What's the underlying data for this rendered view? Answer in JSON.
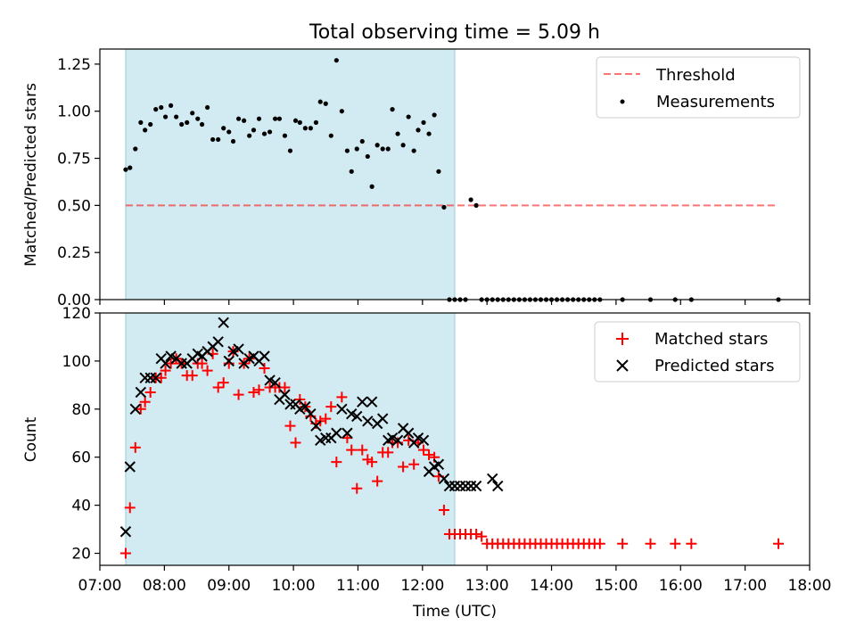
{
  "title": "Total observing time = 5.09 h",
  "colors": {
    "span": "#add8e6",
    "threshold": "#ff0000",
    "measurement": "#000000",
    "matched": "#ff0000",
    "predicted": "#000000"
  },
  "chart_data": [
    {
      "type": "scatter",
      "panel": "top",
      "title": "Total observing time = 5.09 h",
      "xlabel": "",
      "ylabel": "Matched/Predicted stars",
      "xlim": [
        "07:00",
        "18:00"
      ],
      "ylim": [
        0,
        1.33
      ],
      "yticks": [
        "0.00",
        "0.25",
        "0.50",
        "0.75",
        "1.00",
        "1.25"
      ],
      "shaded_span": [
        "07:24",
        "12:30"
      ],
      "legend_position": "top-right",
      "threshold": {
        "name": "Threshold",
        "value": 0.5,
        "x_range": [
          "07:24",
          "17:30"
        ],
        "style": "dashed"
      },
      "series": [
        {
          "name": "Measurements",
          "marker": "dot",
          "x": [
            "07:24",
            "07:28",
            "07:33",
            "07:38",
            "07:42",
            "07:47",
            "07:52",
            "07:57",
            "08:01",
            "08:06",
            "08:11",
            "08:16",
            "08:21",
            "08:26",
            "08:31",
            "08:35",
            "08:40",
            "08:45",
            "08:50",
            "08:55",
            "09:00",
            "09:04",
            "09:09",
            "09:14",
            "09:19",
            "09:23",
            "09:28",
            "09:33",
            "09:38",
            "09:43",
            "09:47",
            "09:52",
            "09:57",
            "10:02",
            "10:06",
            "10:11",
            "10:16",
            "10:21",
            "10:25",
            "10:30",
            "10:35",
            "10:40",
            "10:45",
            "10:50",
            "10:54",
            "10:59",
            "11:04",
            "11:09",
            "11:13",
            "11:18",
            "11:23",
            "11:28",
            "11:32",
            "11:37",
            "11:42",
            "11:47",
            "11:52",
            "11:56",
            "12:01",
            "12:06",
            "12:11",
            "12:15",
            "12:20",
            "12:25",
            "12:30",
            "12:35",
            "12:40",
            "12:45",
            "12:50",
            "12:55",
            "13:00",
            "13:05",
            "13:10",
            "13:15",
            "13:20",
            "13:25",
            "13:30",
            "13:35",
            "13:40",
            "13:45",
            "13:50",
            "13:55",
            "14:00",
            "14:05",
            "14:10",
            "14:15",
            "14:20",
            "14:25",
            "14:30",
            "14:35",
            "14:40",
            "14:45",
            "15:06",
            "15:32",
            "15:55",
            "16:10",
            "17:31"
          ],
          "y": [
            0.69,
            0.7,
            0.8,
            0.94,
            0.9,
            0.93,
            1.01,
            1.02,
            0.97,
            1.03,
            0.97,
            0.93,
            0.94,
            0.99,
            0.96,
            0.93,
            1.02,
            0.85,
            0.85,
            0.91,
            0.89,
            0.84,
            0.96,
            0.95,
            0.87,
            0.9,
            0.96,
            0.88,
            0.89,
            0.96,
            0.96,
            0.87,
            0.79,
            0.95,
            0.94,
            0.91,
            0.91,
            0.94,
            1.05,
            1.04,
            0.87,
            1.27,
            1.0,
            0.79,
            0.68,
            0.8,
            0.84,
            0.76,
            0.6,
            0.82,
            0.8,
            0.8,
            1.01,
            0.88,
            0.82,
            0.97,
            0.79,
            0.9,
            0.94,
            0.88,
            0.98,
            0.68,
            0.49,
            0,
            0,
            0,
            0,
            0.53,
            0.5,
            0,
            0,
            0,
            0,
            0,
            0,
            0,
            0,
            0,
            0,
            0,
            0,
            0,
            0,
            0,
            0,
            0,
            0,
            0,
            0,
            0,
            0,
            0,
            0,
            0,
            0,
            0,
            0
          ]
        }
      ]
    },
    {
      "type": "scatter",
      "panel": "bottom",
      "xlabel": "Time (UTC)",
      "ylabel": "Count",
      "xlim": [
        "07:00",
        "18:00"
      ],
      "ylim": [
        15,
        120
      ],
      "yticks": [
        "20",
        "40",
        "60",
        "80",
        "100",
        "120"
      ],
      "xticks": [
        "07:00",
        "08:00",
        "09:00",
        "10:00",
        "11:00",
        "12:00",
        "13:00",
        "14:00",
        "15:00",
        "16:00",
        "17:00",
        "18:00"
      ],
      "shaded_span": [
        "07:24",
        "12:30"
      ],
      "legend_position": "top-right",
      "series": [
        {
          "name": "Matched stars",
          "marker": "plus",
          "x": [
            "07:24",
            "07:28",
            "07:33",
            "07:38",
            "07:42",
            "07:47",
            "07:52",
            "07:57",
            "08:01",
            "08:06",
            "08:11",
            "08:16",
            "08:21",
            "08:26",
            "08:31",
            "08:35",
            "08:40",
            "08:45",
            "08:50",
            "08:55",
            "09:00",
            "09:04",
            "09:09",
            "09:14",
            "09:19",
            "09:23",
            "09:28",
            "09:33",
            "09:38",
            "09:43",
            "09:47",
            "09:52",
            "09:57",
            "10:02",
            "10:06",
            "10:11",
            "10:16",
            "10:21",
            "10:25",
            "10:30",
            "10:35",
            "10:40",
            "10:45",
            "10:50",
            "10:54",
            "10:59",
            "11:04",
            "11:09",
            "11:13",
            "11:18",
            "11:23",
            "11:28",
            "11:32",
            "11:37",
            "11:42",
            "11:47",
            "11:52",
            "11:56",
            "12:01",
            "12:06",
            "12:11",
            "12:15",
            "12:20",
            "12:25",
            "12:30",
            "12:35",
            "12:40",
            "12:45",
            "12:50",
            "12:55",
            "13:00",
            "13:05",
            "13:10",
            "13:15",
            "13:20",
            "13:25",
            "13:30",
            "13:35",
            "13:40",
            "13:45",
            "13:50",
            "13:55",
            "14:00",
            "14:05",
            "14:10",
            "14:15",
            "14:20",
            "14:25",
            "14:30",
            "14:35",
            "14:40",
            "14:45",
            "15:06",
            "15:32",
            "15:55",
            "16:10",
            "17:31"
          ],
          "y": [
            20,
            39,
            64,
            80,
            83,
            87,
            93,
            93,
            96,
            99,
            101,
            99,
            94,
            94,
            99,
            99,
            96,
            103,
            89,
            91,
            99,
            104,
            86,
            99,
            101,
            87,
            88,
            97,
            89,
            89,
            89,
            89,
            73,
            66,
            84,
            81,
            77,
            74,
            75,
            76,
            81,
            58,
            85,
            68,
            63,
            47,
            63,
            59,
            58,
            50,
            62,
            62,
            66,
            66,
            56,
            67,
            57,
            66,
            63,
            61,
            60,
            52,
            38,
            28,
            28,
            28,
            28,
            28,
            28,
            27,
            24,
            24,
            24,
            24,
            24,
            24,
            24,
            24,
            24,
            24,
            24,
            24,
            24,
            24,
            24,
            24,
            24,
            24,
            24,
            24,
            24,
            24,
            24,
            24,
            24,
            24,
            24
          ]
        },
        {
          "name": "Predicted stars",
          "marker": "x",
          "x": [
            "07:24",
            "07:28",
            "07:33",
            "07:38",
            "07:42",
            "07:47",
            "07:52",
            "07:57",
            "08:01",
            "08:06",
            "08:11",
            "08:16",
            "08:21",
            "08:26",
            "08:31",
            "08:35",
            "08:40",
            "08:45",
            "08:50",
            "08:55",
            "09:00",
            "09:04",
            "09:09",
            "09:14",
            "09:19",
            "09:23",
            "09:28",
            "09:33",
            "09:38",
            "09:43",
            "09:47",
            "09:52",
            "09:57",
            "10:02",
            "10:06",
            "10:11",
            "10:16",
            "10:21",
            "10:25",
            "10:30",
            "10:35",
            "10:40",
            "10:45",
            "10:50",
            "10:54",
            "10:59",
            "11:04",
            "11:09",
            "11:13",
            "11:18",
            "11:23",
            "11:28",
            "11:32",
            "11:37",
            "11:42",
            "11:47",
            "11:52",
            "11:56",
            "12:01",
            "12:06",
            "12:11",
            "12:15",
            "12:20",
            "12:25",
            "12:30",
            "12:35",
            "12:40",
            "12:45",
            "12:50",
            "13:05",
            "13:10"
          ],
          "y": [
            29,
            56,
            80,
            87,
            93,
            93,
            93,
            101,
            99,
            102,
            101,
            99,
            99,
            101,
            103,
            102,
            104,
            106,
            108,
            116,
            100,
            104,
            105,
            99,
            101,
            102,
            100,
            102,
            92,
            91,
            84,
            86,
            82,
            82,
            80,
            81,
            78,
            73,
            67,
            68,
            68,
            70,
            80,
            70,
            78,
            77,
            83,
            75,
            83,
            74,
            76,
            67,
            68,
            67,
            72,
            70,
            66,
            68,
            67,
            54,
            56,
            57,
            51,
            48,
            48,
            48,
            48,
            48,
            48,
            51,
            48
          ]
        }
      ]
    }
  ]
}
